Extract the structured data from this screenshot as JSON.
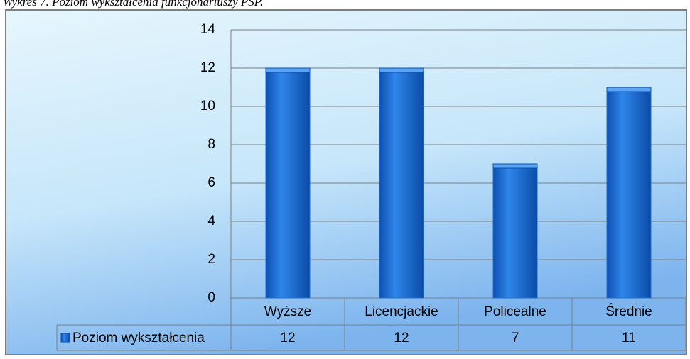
{
  "chart_data": {
    "type": "bar",
    "title": "Wykres 7. Poziom wykształcenia funkcjonariuszy PSP.",
    "categories": [
      "Wyższe",
      "Licencjackie",
      "Policealne",
      "Średnie"
    ],
    "series": [
      {
        "name": "Poziom wykształcenia",
        "color": "#1a6fd6",
        "values": [
          12,
          12,
          7,
          11
        ]
      }
    ],
    "ylim": [
      0,
      14
    ],
    "yticks": [
      0,
      2,
      4,
      6,
      8,
      10,
      12,
      14
    ],
    "grid": true,
    "data_table": true
  }
}
